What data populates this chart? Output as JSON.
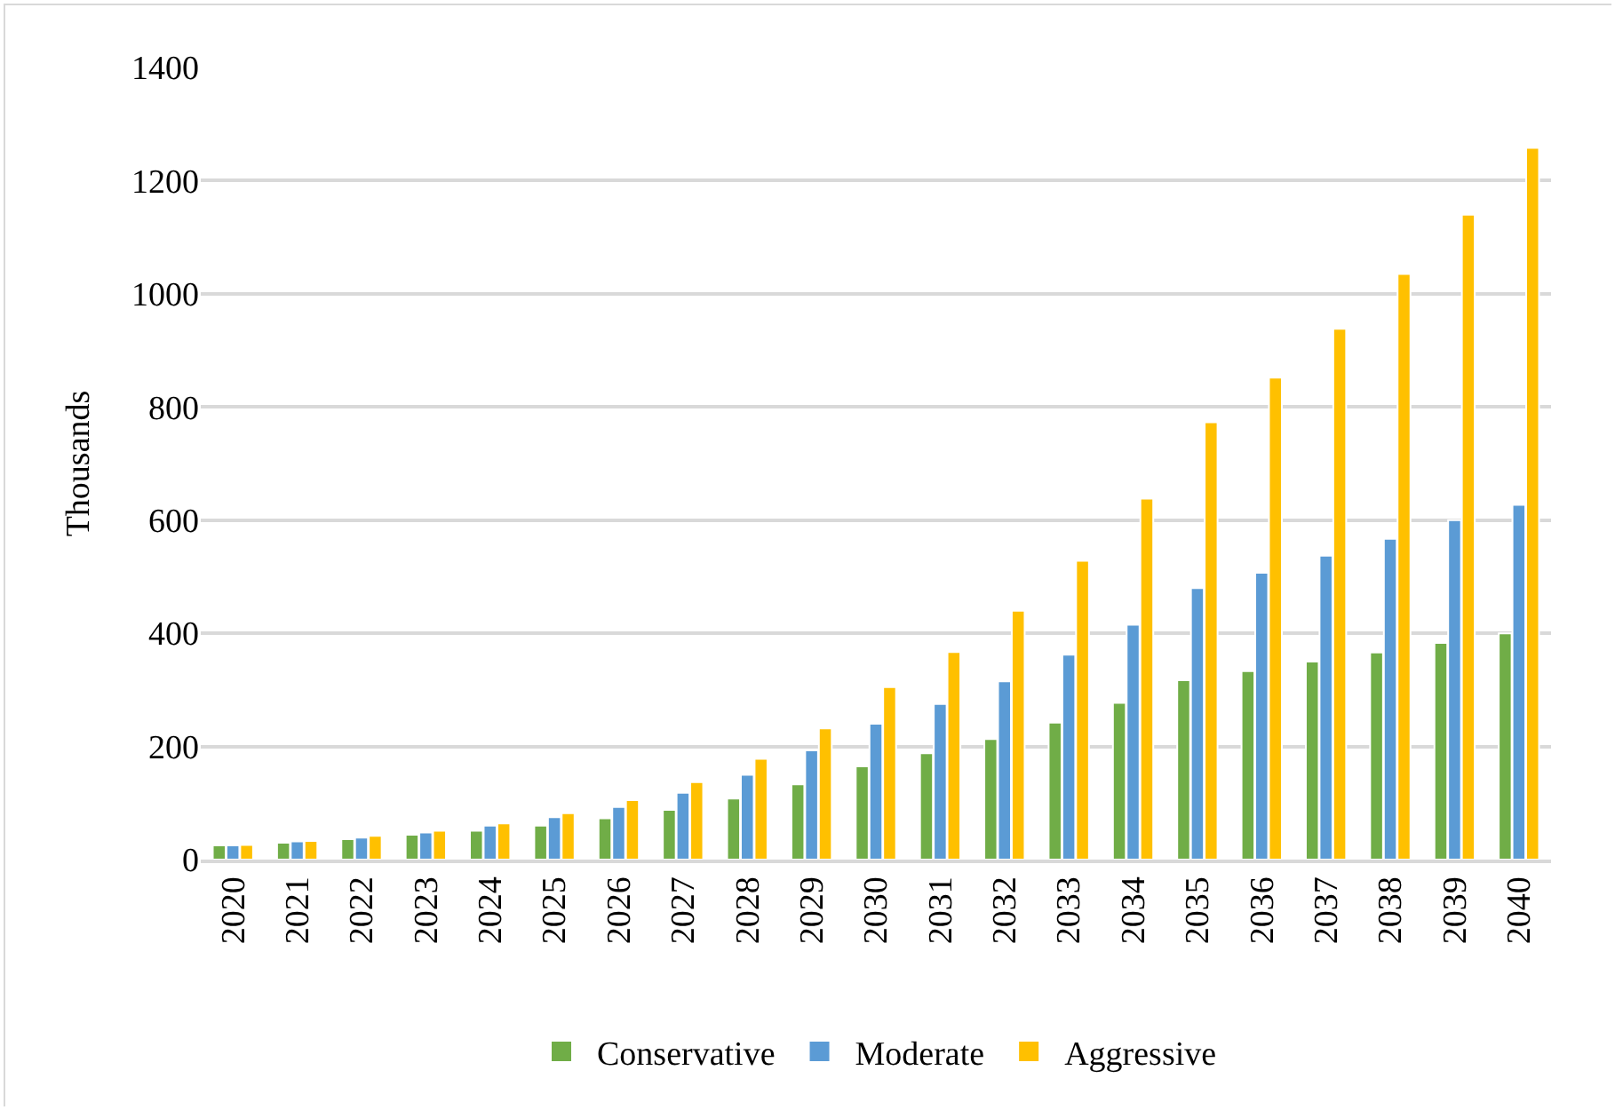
{
  "chart_data": {
    "type": "bar",
    "ylabel": "Thousands",
    "categories": [
      "2020",
      "2021",
      "2022",
      "2023",
      "2024",
      "2025",
      "2026",
      "2027",
      "2028",
      "2029",
      "2030",
      "2031",
      "2032",
      "2033",
      "2034",
      "2035",
      "2036",
      "2037",
      "2038",
      "2039",
      "2040"
    ],
    "series": [
      {
        "name": "Conservative",
        "color": "#70ad47",
        "values": [
          25,
          30,
          36,
          44,
          51,
          60,
          73,
          88,
          108,
          133,
          165,
          188,
          213,
          242,
          277,
          317,
          333,
          350,
          366,
          383,
          400
        ]
      },
      {
        "name": "Moderate",
        "color": "#5b9bd5",
        "values": [
          25,
          32,
          39,
          48,
          60,
          75,
          93,
          118,
          150,
          193,
          240,
          275,
          315,
          362,
          415,
          480,
          507,
          537,
          567,
          600,
          627
        ]
      },
      {
        "name": "Aggressive",
        "color": "#ffc000",
        "values": [
          26,
          33,
          42,
          51,
          64,
          82,
          105,
          137,
          178,
          232,
          305,
          367,
          440,
          528,
          638,
          773,
          852,
          938,
          1035,
          1140,
          1258
        ]
      }
    ],
    "ylim": [
      0,
      1400
    ],
    "yticks": [
      0,
      200,
      400,
      600,
      800,
      1000,
      1200,
      1400
    ],
    "grid": "y",
    "legend": "bottom"
  }
}
